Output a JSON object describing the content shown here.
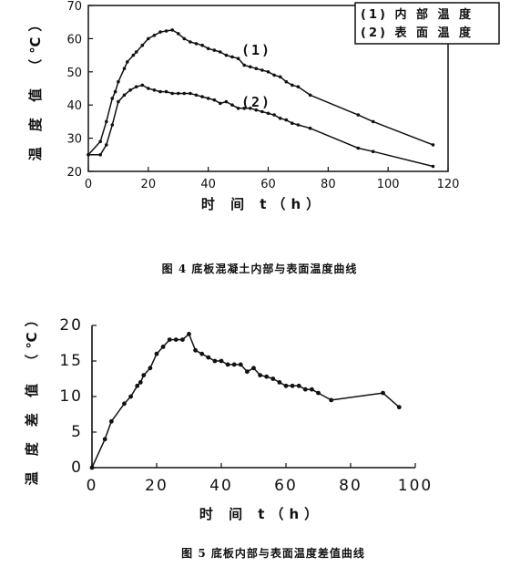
{
  "chart_data": [
    {
      "type": "line",
      "caption": "图 4   底板混凝土内部与表面温度曲线",
      "xlabel": "时 间 t（h）",
      "ylabel": "温 度 值 （℃）",
      "xlim": [
        0,
        120
      ],
      "ylim": [
        20,
        70
      ],
      "xticks": [
        "0",
        "20",
        "40",
        "60",
        "80",
        "100",
        "120"
      ],
      "yticks": [
        "20",
        "30",
        "40",
        "50",
        "60",
        "70"
      ],
      "legend_position": "top-right",
      "legend": [
        "(1)  内 部 温 度",
        "(2)  表 面 温 度"
      ],
      "annotations": [
        "(1)",
        "(2)"
      ],
      "series": [
        {
          "name": "内部温度",
          "label": "(1)",
          "x": [
            0,
            4,
            6,
            8,
            9,
            10,
            12,
            13,
            15,
            16,
            18,
            20,
            22,
            24,
            26,
            28,
            30,
            32,
            34,
            36,
            38,
            40,
            42,
            44,
            46,
            48,
            50,
            52,
            54,
            56,
            58,
            60,
            62,
            64,
            66,
            68,
            70,
            74,
            90,
            95,
            115
          ],
          "y": [
            25,
            29,
            35,
            42,
            44,
            47,
            51,
            53,
            55,
            56,
            58,
            60,
            61,
            62,
            62.3,
            62.6,
            61.5,
            60,
            59,
            58.5,
            58,
            57,
            56.5,
            56,
            55,
            54.5,
            54,
            52,
            51.5,
            51,
            50.5,
            50,
            49,
            48.5,
            47,
            46,
            45.5,
            43,
            37,
            35,
            28
          ]
        },
        {
          "name": "表面温度",
          "label": "(2)",
          "x": [
            0,
            4,
            6,
            8,
            10,
            12,
            14,
            16,
            18,
            20,
            22,
            24,
            26,
            28,
            30,
            32,
            34,
            36,
            38,
            40,
            42,
            44,
            46,
            48,
            50,
            52,
            54,
            56,
            58,
            60,
            62,
            64,
            66,
            68,
            70,
            74,
            90,
            95,
            115
          ],
          "y": [
            25,
            25,
            28,
            34,
            41,
            43,
            44.5,
            45.5,
            46,
            45,
            44.5,
            44,
            44,
            43.5,
            43.5,
            43.5,
            43.5,
            43,
            42.5,
            42,
            41.5,
            40.5,
            41,
            40,
            39,
            39,
            39,
            38.5,
            38,
            37.5,
            37,
            36,
            35.5,
            34.5,
            34,
            33,
            27,
            26,
            21.5
          ]
        }
      ]
    },
    {
      "type": "line",
      "caption": "图 5   底板内部与表面温度差值曲线",
      "xlabel": "时 间 t（h）",
      "ylabel": "温 度 差 值 （℃）",
      "xlim": [
        0,
        100
      ],
      "ylim": [
        0,
        20
      ],
      "xticks": [
        "0",
        "20",
        "40",
        "60",
        "80",
        "100"
      ],
      "yticks": [
        "0",
        "5",
        "10",
        "15",
        "20"
      ],
      "series": [
        {
          "name": "温度差值",
          "x": [
            0,
            4,
            6,
            10,
            12,
            14,
            15,
            16,
            18,
            20,
            22,
            24,
            26,
            28,
            30,
            32,
            34,
            36,
            38,
            40,
            42,
            44,
            46,
            48,
            50,
            52,
            54,
            56,
            58,
            60,
            62,
            64,
            66,
            68,
            70,
            74,
            90,
            95
          ],
          "y": [
            0,
            4,
            6.5,
            9,
            10,
            11.5,
            12,
            13,
            14,
            16,
            17,
            18,
            18,
            18,
            18.8,
            16.5,
            16,
            15.5,
            15,
            15,
            14.5,
            14.5,
            14.5,
            13.5,
            14,
            13,
            12.8,
            12.5,
            12,
            11.5,
            11.5,
            11.5,
            11,
            11,
            10.5,
            9.5,
            10.5,
            8.5
          ]
        }
      ]
    }
  ]
}
